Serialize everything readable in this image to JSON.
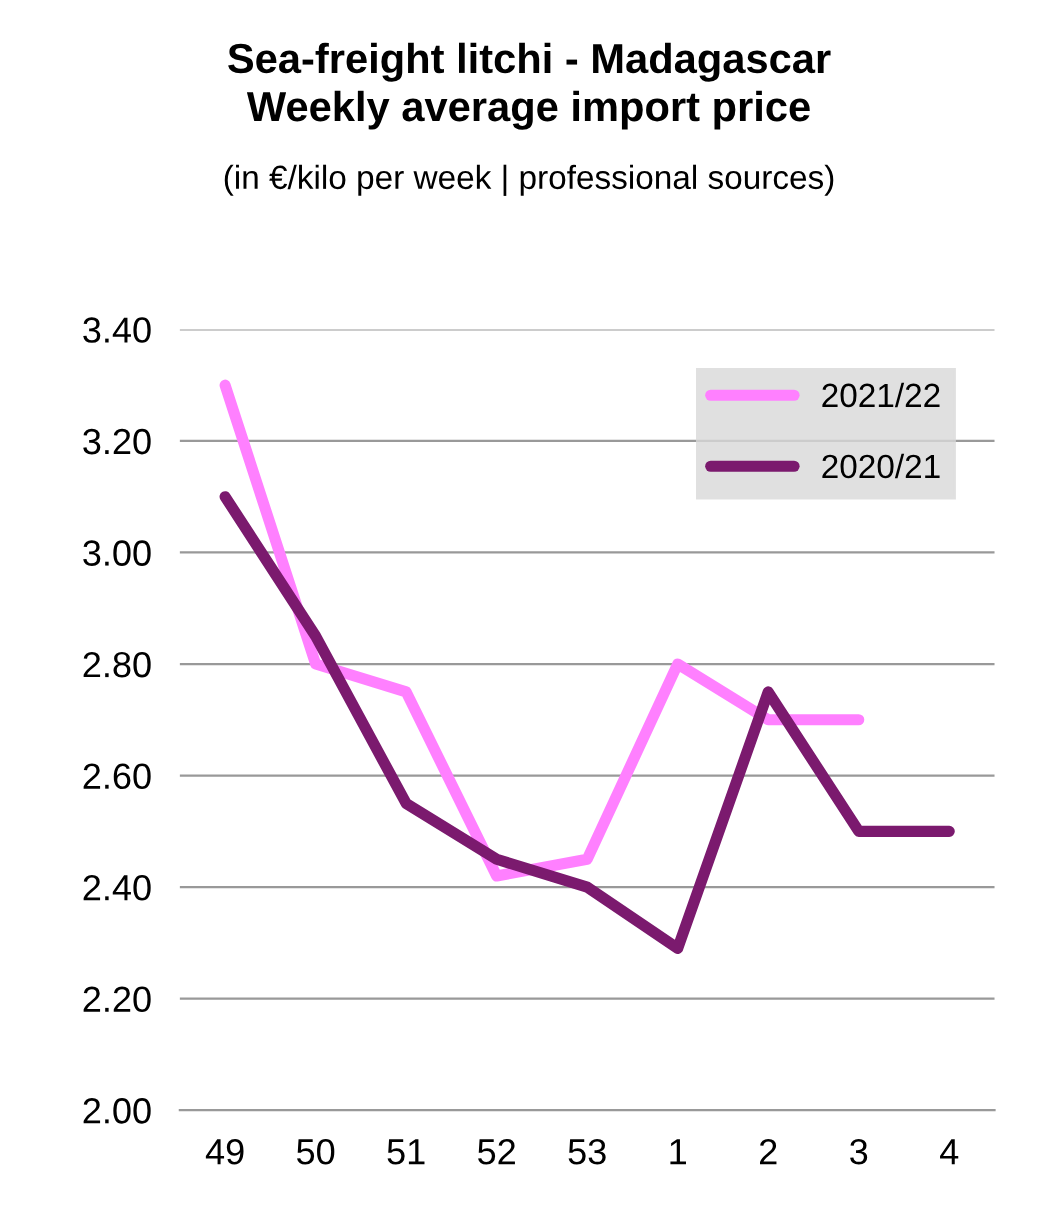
{
  "chart_data": {
    "type": "line",
    "title": "Sea-freight litchi - Madagascar\nWeekly average import price",
    "subtitle": "(in €/kilo per week | professional sources)",
    "categories": [
      "49",
      "50",
      "51",
      "52",
      "53",
      "1",
      "2",
      "3",
      "4"
    ],
    "series": [
      {
        "name": "2021/22",
        "color": "#ff80ff",
        "values": [
          3.3,
          2.8,
          2.75,
          2.42,
          2.45,
          2.8,
          2.7,
          2.7,
          null
        ]
      },
      {
        "name": "2020/21",
        "color": "#7b1a6e",
        "values": [
          3.1,
          2.85,
          2.55,
          2.45,
          2.4,
          2.29,
          2.75,
          2.5,
          2.5
        ]
      }
    ],
    "ylim": [
      2.0,
      3.4
    ],
    "yticks": [
      {
        "value": 2.0,
        "label": "2.00"
      },
      {
        "value": 2.2,
        "label": "2.20"
      },
      {
        "value": 2.4,
        "label": "2.40"
      },
      {
        "value": 2.6,
        "label": "2.60"
      },
      {
        "value": 2.8,
        "label": "2.80"
      },
      {
        "value": 3.0,
        "label": "3.00"
      },
      {
        "value": 3.2,
        "label": "3.20"
      },
      {
        "value": 3.4,
        "label": "3.40"
      }
    ],
    "grid": "y",
    "legend": "top right",
    "marker": "none",
    "line_style": "solid"
  }
}
